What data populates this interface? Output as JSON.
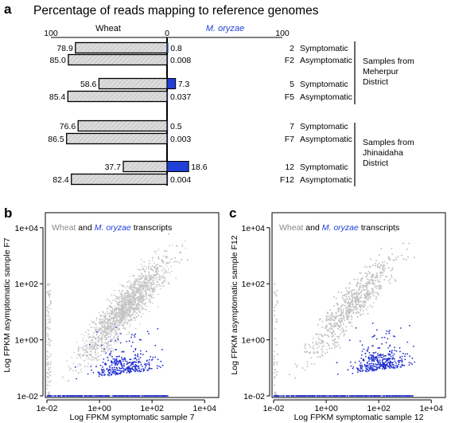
{
  "panel_a": {
    "letter": "a",
    "title": "Percentage of reads mapping to reference genomes",
    "left_label": "Wheat",
    "right_label": "M. oryzae",
    "left_max": "100",
    "center": "0",
    "right_max": "100",
    "colors": {
      "wheat_fill": "#d8d8d8",
      "oryzae_fill": "#1f3fd6"
    },
    "group_1": "Samples from Meherpur District",
    "group_2": "Samples from Jhinaidaha District"
  },
  "panel_b": {
    "letter": "b",
    "legend_wheat": "Wheat",
    "legend_and": "and",
    "legend_oryzae": "M. oryzae",
    "legend_tail": "transcripts",
    "xlabel": "Log FPKM symptomatic sample 7",
    "ylabel": "Log FPKM asymptomatic sample F7"
  },
  "panel_c": {
    "letter": "c",
    "legend_wheat": "Wheat",
    "legend_and": "and",
    "legend_oryzae": "M. oryzae",
    "legend_tail": "transcripts",
    "xlabel": "Log FPKM symptomatic sample 12",
    "ylabel": "Log FPKM asymptomatic sample F12"
  },
  "chart_data": [
    {
      "type": "bar",
      "subtype": "diverging-horizontal",
      "categories": [
        "2",
        "F2",
        "5",
        "F5",
        "7",
        "F7",
        "12",
        "F12"
      ],
      "status": [
        "Symptomatic",
        "Asymptomatic",
        "Symptomatic",
        "Asymptomatic",
        "Symptomatic",
        "Asymptomatic",
        "Symptomatic",
        "Asymptomatic"
      ],
      "series": [
        {
          "name": "Wheat",
          "values": [
            78.9,
            85.0,
            58.6,
            85.4,
            76.6,
            86.5,
            37.7,
            82.4
          ],
          "labels": [
            "78.9",
            "85.0",
            "58.6",
            "85.4",
            "76.6",
            "86.5",
            "37.7",
            "82.4"
          ]
        },
        {
          "name": "M. oryzae",
          "values": [
            0.8,
            0.008,
            7.3,
            0.037,
            0.5,
            0.003,
            18.6,
            0.004
          ],
          "labels": [
            "0.8",
            "0.008",
            "7.3",
            "0.037",
            "0.5",
            "0.003",
            "18.6",
            "0.004"
          ]
        }
      ],
      "xlim": [
        0,
        100
      ]
    },
    {
      "type": "scatter",
      "xscale": "log",
      "yscale": "log",
      "xlim": [
        0.01,
        30000
      ],
      "ylim": [
        0.01,
        30000
      ],
      "xticks": [
        "1e-02",
        "1e+00",
        "1e+02",
        "1e+04"
      ],
      "yticks": [
        "1e-02",
        "1e+00",
        "1e+02",
        "1e+04"
      ],
      "series": [
        {
          "name": "Wheat",
          "color": "#c4c4c4",
          "approx_points": 7000
        },
        {
          "name": "M. oryzae",
          "color": "#1f2fd0",
          "approx_points": 650
        }
      ]
    },
    {
      "type": "scatter",
      "xscale": "log",
      "yscale": "log",
      "xlim": [
        0.01,
        30000
      ],
      "ylim": [
        0.01,
        30000
      ],
      "xticks": [
        "1e-02",
        "1e+00",
        "1e+02",
        "1e+04"
      ],
      "yticks": [
        "1e-02",
        "1e+00",
        "1e+02",
        "1e+04"
      ],
      "series": [
        {
          "name": "Wheat",
          "color": "#c4c4c4",
          "approx_points": 7000
        },
        {
          "name": "M. oryzae",
          "color": "#1f2fd0",
          "approx_points": 700
        }
      ]
    }
  ]
}
